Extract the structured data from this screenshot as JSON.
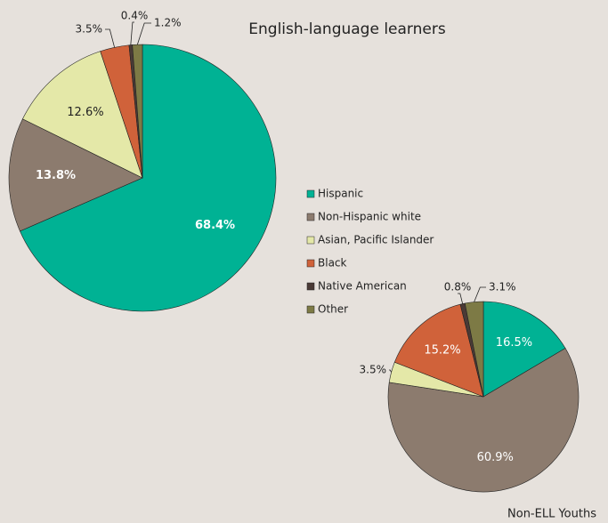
{
  "chart_data": [
    {
      "type": "pie",
      "title": "English-language learners",
      "categories": [
        "Hispanic",
        "Non-Hispanic white",
        "Asian, Pacific Islander",
        "Black",
        "Native American",
        "Other"
      ],
      "colors": [
        "#00b294",
        "#8c7b6e",
        "#e4e8a8",
        "#d0623a",
        "#4a3a36",
        "#7d7a45"
      ],
      "values": [
        68.4,
        13.8,
        12.6,
        3.5,
        0.4,
        1.2
      ],
      "legend": "right"
    },
    {
      "type": "pie",
      "title": "Non-ELL Youths",
      "values": [
        16.5,
        60.9,
        3.5,
        15.2,
        0.8,
        3.1
      ]
    }
  ]
}
